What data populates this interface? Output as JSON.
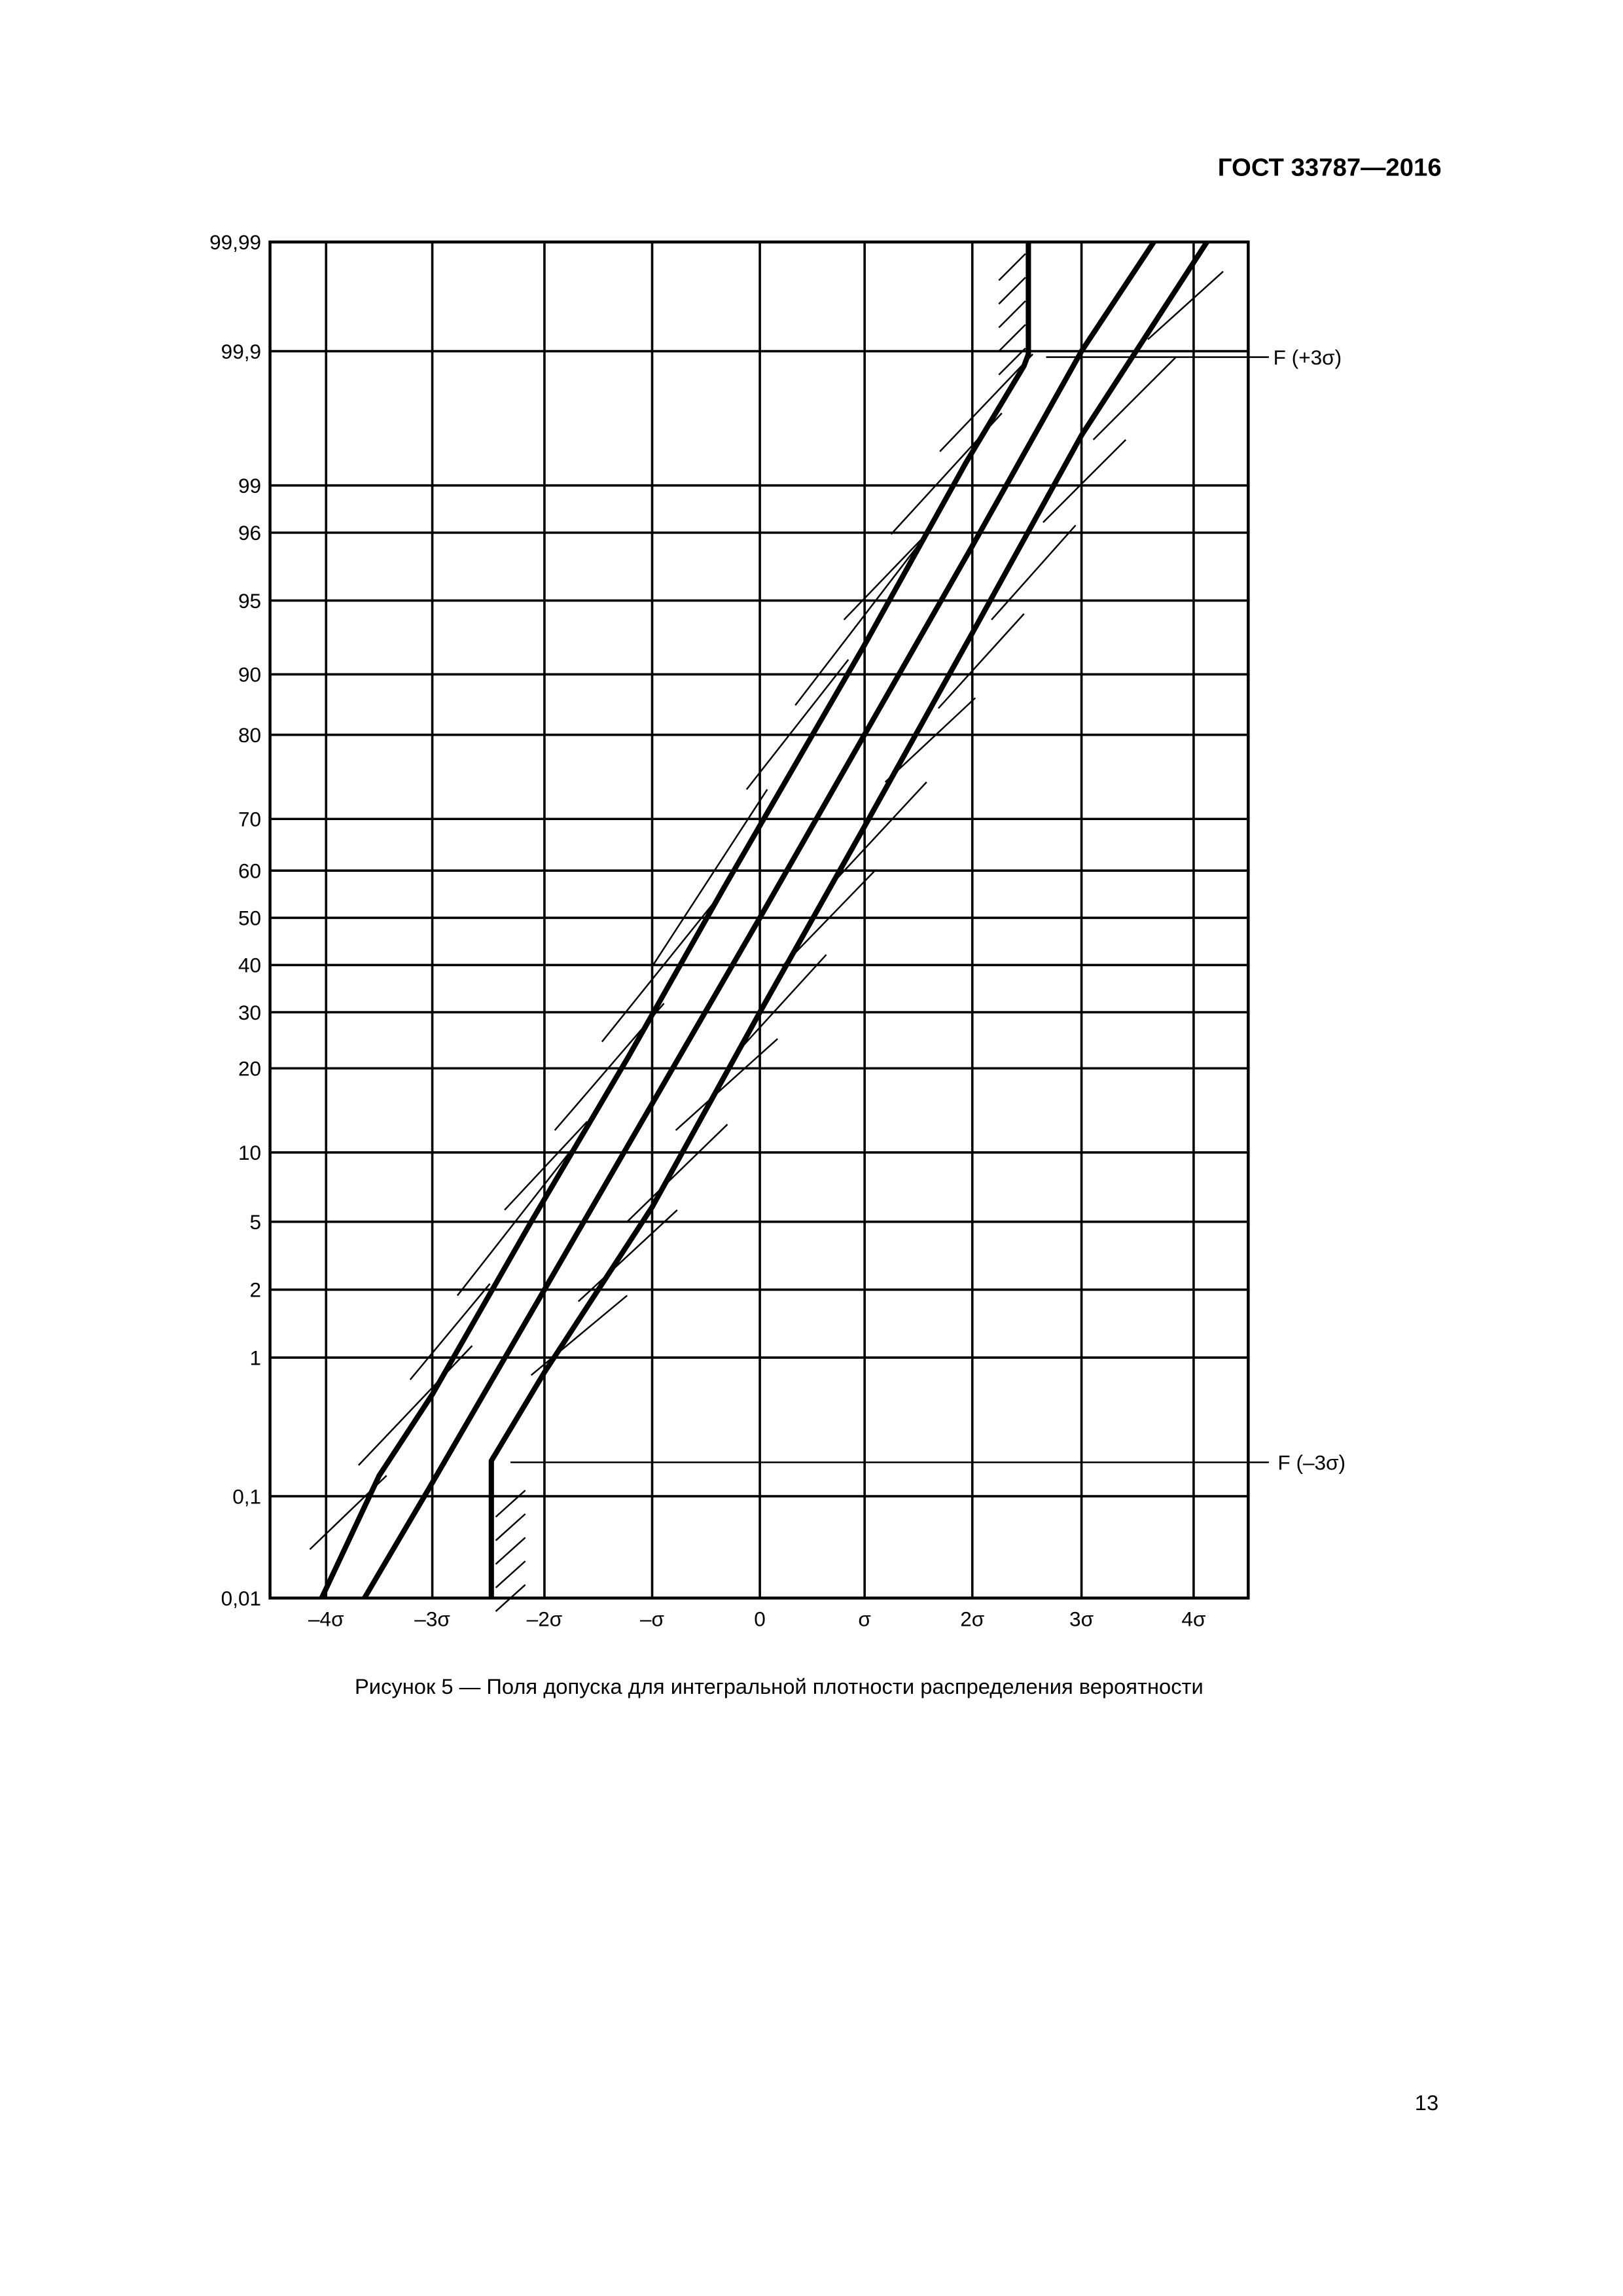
{
  "header": {
    "title": "ГОСТ 33787—2016"
  },
  "figure": {
    "y_labels": [
      "99,99",
      "99,9",
      "99",
      "96",
      "95",
      "90",
      "80",
      "70",
      "60",
      "50",
      "40",
      "30",
      "20",
      "10",
      "5",
      "2",
      "1",
      "0,1",
      "0,01"
    ],
    "x_labels": [
      "–4σ",
      "–3σ",
      "–2σ",
      "–σ",
      "0",
      "σ",
      "2σ",
      "3σ",
      "4σ"
    ],
    "annotations": [
      "F (+3σ)",
      "F (–3σ)"
    ]
  },
  "caption": "Рисунок 5 — Поля допуска для интегральной плотности распределения вероятности",
  "page_number": "13"
}
